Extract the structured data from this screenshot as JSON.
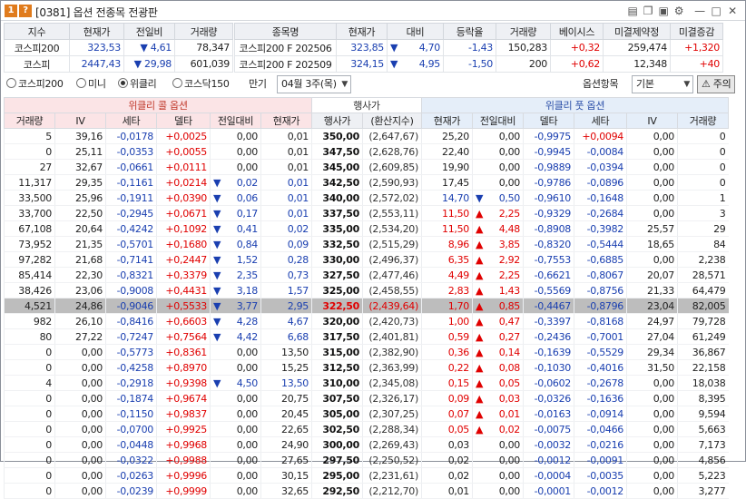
{
  "window": {
    "code": "[0381]",
    "title": "옵션 전종목 전광판",
    "help": "?",
    "num": "1"
  },
  "summary_left": {
    "headers": [
      "지수",
      "현재가",
      "전일비",
      "거래량"
    ],
    "rows": [
      {
        "name": "코스피200",
        "price": "323,53",
        "dir": "dn",
        "change": "4,61",
        "volume": "78,347"
      },
      {
        "name": "코스피",
        "price": "2447,43",
        "dir": "dn",
        "change": "29,98",
        "volume": "601,039"
      }
    ]
  },
  "summary_right": {
    "headers": [
      "종목명",
      "현재가",
      "대비",
      "등락율",
      "거래량",
      "베이시스",
      "미결제약정",
      "미결증감"
    ],
    "rows": [
      {
        "name": "코스피200 F 202506",
        "price": "323,85",
        "dir": "dn",
        "change": "4,70",
        "rate": "-1,43",
        "volume": "150,283",
        "basis": "+0,32",
        "oi": "259,474",
        "oichg": "+1,320"
      },
      {
        "name": "코스피200 F 202509",
        "price": "324,15",
        "dir": "dn",
        "change": "4,95",
        "rate": "-1,50",
        "volume": "200",
        "basis": "+0,62",
        "oi": "12,348",
        "oichg": "+40"
      }
    ]
  },
  "controls": {
    "radios": [
      "코스피200",
      "미니",
      "위클리",
      "코스닥150"
    ],
    "selected": 2,
    "expiry_label": "만기",
    "expiry_value": "04월 3주(목)",
    "option_item_label": "옵션항목",
    "option_item_value": "기본",
    "lookup_label": "주의"
  },
  "grid": {
    "group_call": "위클리 콜 옵션",
    "group_strike": "행사가",
    "group_put": "위클리 풋 옵션",
    "call_headers": [
      "거래량",
      "IV",
      "세타",
      "델타",
      "전일대비",
      "현재가"
    ],
    "strike_headers": [
      "행사가",
      "(환산지수)"
    ],
    "put_headers": [
      "현재가",
      "전일대비",
      "델타",
      "세타",
      "IV",
      "거래량"
    ],
    "rows": [
      {
        "cv": "5",
        "civ": "39,16",
        "cth": "-0,0178",
        "cde": "+0,0025",
        "cd": "",
        "cch": "0,00",
        "cp": "0,01",
        "k": "350,00",
        "x": "(2,647,67)",
        "pp": "25,20",
        "pd": "",
        "pch": "0,00",
        "pde": "-0,9975",
        "pth": "+0,0094",
        "piv": "0,00",
        "pv": "0"
      },
      {
        "cv": "0",
        "civ": "25,11",
        "cth": "-0,0353",
        "cde": "+0,0055",
        "cd": "",
        "cch": "0,00",
        "cp": "0,01",
        "k": "347,50",
        "x": "(2,628,76)",
        "pp": "22,40",
        "pd": "",
        "pch": "0,00",
        "pde": "-0,9945",
        "pth": "-0,0084",
        "piv": "0,00",
        "pv": "0"
      },
      {
        "cv": "27",
        "civ": "32,67",
        "cth": "-0,0661",
        "cde": "+0,0111",
        "cd": "",
        "cch": "0,00",
        "cp": "0,01",
        "k": "345,00",
        "x": "(2,609,85)",
        "pp": "19,90",
        "pd": "",
        "pch": "0,00",
        "pde": "-0,9889",
        "pth": "-0,0394",
        "piv": "0,00",
        "pv": "0"
      },
      {
        "cv": "11,317",
        "civ": "29,35",
        "cth": "-0,1161",
        "cde": "+0,0214",
        "cd": "dn",
        "cch": "0,02",
        "cp": "0,01",
        "k": "342,50",
        "x": "(2,590,93)",
        "pp": "17,45",
        "pd": "",
        "pch": "0,00",
        "pde": "-0,9786",
        "pth": "-0,0896",
        "piv": "0,00",
        "pv": "0"
      },
      {
        "cv": "33,500",
        "civ": "25,96",
        "cth": "-0,1911",
        "cde": "+0,0390",
        "cd": "dn",
        "cch": "0,06",
        "cp": "0,01",
        "k": "340,00",
        "x": "(2,572,02)",
        "pp": "14,70",
        "pd": "dn",
        "pch": "0,50",
        "pde": "-0,9610",
        "pth": "-0,1648",
        "piv": "0,00",
        "pv": "1"
      },
      {
        "cv": "33,700",
        "civ": "22,50",
        "cth": "-0,2945",
        "cde": "+0,0671",
        "cd": "dn",
        "cch": "0,17",
        "cp": "0,01",
        "k": "337,50",
        "x": "(2,553,11)",
        "pp": "11,50",
        "pd": "up",
        "pch": "2,25",
        "pde": "-0,9329",
        "pth": "-0,2684",
        "piv": "0,00",
        "pv": "3"
      },
      {
        "cv": "67,108",
        "civ": "20,64",
        "cth": "-0,4242",
        "cde": "+0,1092",
        "cd": "dn",
        "cch": "0,41",
        "cp": "0,02",
        "k": "335,00",
        "x": "(2,534,20)",
        "pp": "11,50",
        "pd": "up",
        "pch": "4,48",
        "pde": "-0,8908",
        "pth": "-0,3982",
        "piv": "25,57",
        "pv": "29"
      },
      {
        "cv": "73,952",
        "civ": "21,35",
        "cth": "-0,5701",
        "cde": "+0,1680",
        "cd": "dn",
        "cch": "0,84",
        "cp": "0,09",
        "k": "332,50",
        "x": "(2,515,29)",
        "pp": "8,96",
        "pd": "up",
        "pch": "3,85",
        "pde": "-0,8320",
        "pth": "-0,5444",
        "piv": "18,65",
        "pv": "84"
      },
      {
        "cv": "97,282",
        "civ": "21,68",
        "cth": "-0,7141",
        "cde": "+0,2447",
        "cd": "dn",
        "cch": "1,52",
        "cp": "0,28",
        "k": "330,00",
        "x": "(2,496,37)",
        "pp": "6,35",
        "pd": "up",
        "pch": "2,92",
        "pde": "-0,7553",
        "pth": "-0,6885",
        "piv": "0,00",
        "pv": "2,238"
      },
      {
        "cv": "85,414",
        "civ": "22,30",
        "cth": "-0,8321",
        "cde": "+0,3379",
        "cd": "dn",
        "cch": "2,35",
        "cp": "0,73",
        "k": "327,50",
        "x": "(2,477,46)",
        "pp": "4,49",
        "pd": "up",
        "pch": "2,25",
        "pde": "-0,6621",
        "pth": "-0,8067",
        "piv": "20,07",
        "pv": "28,571"
      },
      {
        "cv": "38,426",
        "civ": "23,06",
        "cth": "-0,9008",
        "cde": "+0,4431",
        "cd": "dn",
        "cch": "3,18",
        "cp": "1,57",
        "k": "325,00",
        "x": "(2,458,55)",
        "pp": "2,83",
        "pd": "up",
        "pch": "1,43",
        "pde": "-0,5569",
        "pth": "-0,8756",
        "piv": "21,33",
        "pv": "64,479"
      },
      {
        "cv": "4,521",
        "civ": "24,86",
        "cth": "-0,9046",
        "cde": "+0,5533",
        "cd": "dn",
        "cch": "3,77",
        "cp": "2,95",
        "k": "322,50",
        "x": "(2,439,64)",
        "pp": "1,70",
        "pd": "up",
        "pch": "0,85",
        "pde": "-0,4467",
        "pth": "-0,8796",
        "piv": "23,04",
        "pv": "82,005",
        "atm": true
      },
      {
        "cv": "982",
        "civ": "26,10",
        "cth": "-0,8416",
        "cde": "+0,6603",
        "cd": "dn",
        "cch": "4,28",
        "cp": "4,67",
        "k": "320,00",
        "x": "(2,420,73)",
        "pp": "1,00",
        "pd": "up",
        "pch": "0,47",
        "pde": "-0,3397",
        "pth": "-0,8168",
        "piv": "24,97",
        "pv": "79,728"
      },
      {
        "cv": "80",
        "civ": "27,22",
        "cth": "-0,7247",
        "cde": "+0,7564",
        "cd": "dn",
        "cch": "4,42",
        "cp": "6,68",
        "k": "317,50",
        "x": "(2,401,81)",
        "pp": "0,59",
        "pd": "up",
        "pch": "0,27",
        "pde": "-0,2436",
        "pth": "-0,7001",
        "piv": "27,04",
        "pv": "61,249"
      },
      {
        "cv": "0",
        "civ": "0,00",
        "cth": "-0,5773",
        "cde": "+0,8361",
        "cd": "",
        "cch": "0,00",
        "cp": "13,50",
        "k": "315,00",
        "x": "(2,382,90)",
        "pp": "0,36",
        "pd": "up",
        "pch": "0,14",
        "pde": "-0,1639",
        "pth": "-0,5529",
        "piv": "29,34",
        "pv": "36,867"
      },
      {
        "cv": "0",
        "civ": "0,00",
        "cth": "-0,4258",
        "cde": "+0,8970",
        "cd": "",
        "cch": "0,00",
        "cp": "15,25",
        "k": "312,50",
        "x": "(2,363,99)",
        "pp": "0,22",
        "pd": "up",
        "pch": "0,08",
        "pde": "-0,1030",
        "pth": "-0,4016",
        "piv": "31,50",
        "pv": "22,158"
      },
      {
        "cv": "4",
        "civ": "0,00",
        "cth": "-0,2918",
        "cde": "+0,9398",
        "cd": "dn",
        "cch": "4,50",
        "cp": "13,50",
        "k": "310,00",
        "x": "(2,345,08)",
        "pp": "0,15",
        "pd": "up",
        "pch": "0,05",
        "pde": "-0,0602",
        "pth": "-0,2678",
        "piv": "0,00",
        "pv": "18,038"
      },
      {
        "cv": "0",
        "civ": "0,00",
        "cth": "-0,1874",
        "cde": "+0,9674",
        "cd": "",
        "cch": "0,00",
        "cp": "20,75",
        "k": "307,50",
        "x": "(2,326,17)",
        "pp": "0,09",
        "pd": "up",
        "pch": "0,03",
        "pde": "-0,0326",
        "pth": "-0,1636",
        "piv": "0,00",
        "pv": "8,395"
      },
      {
        "cv": "0",
        "civ": "0,00",
        "cth": "-0,1150",
        "cde": "+0,9837",
        "cd": "",
        "cch": "0,00",
        "cp": "20,45",
        "k": "305,00",
        "x": "(2,307,25)",
        "pp": "0,07",
        "pd": "up",
        "pch": "0,01",
        "pde": "-0,0163",
        "pth": "-0,0914",
        "piv": "0,00",
        "pv": "9,594"
      },
      {
        "cv": "0",
        "civ": "0,00",
        "cth": "-0,0700",
        "cde": "+0,9925",
        "cd": "",
        "cch": "0,00",
        "cp": "22,65",
        "k": "302,50",
        "x": "(2,288,34)",
        "pp": "0,05",
        "pd": "up",
        "pch": "0,02",
        "pde": "-0,0075",
        "pth": "-0,0466",
        "piv": "0,00",
        "pv": "5,663"
      },
      {
        "cv": "0",
        "civ": "0,00",
        "cth": "-0,0448",
        "cde": "+0,9968",
        "cd": "",
        "cch": "0,00",
        "cp": "24,90",
        "k": "300,00",
        "x": "(2,269,43)",
        "pp": "0,03",
        "pd": "",
        "pch": "0,00",
        "pde": "-0,0032",
        "pth": "-0,0216",
        "piv": "0,00",
        "pv": "7,173"
      },
      {
        "cv": "0",
        "civ": "0,00",
        "cth": "-0,0322",
        "cde": "+0,9988",
        "cd": "",
        "cch": "0,00",
        "cp": "27,65",
        "k": "297,50",
        "x": "(2,250,52)",
        "pp": "0,02",
        "pd": "",
        "pch": "0,00",
        "pde": "-0,0012",
        "pth": "-0,0091",
        "piv": "0,00",
        "pv": "4,856"
      },
      {
        "cv": "0",
        "civ": "0,00",
        "cth": "-0,0263",
        "cde": "+0,9996",
        "cd": "",
        "cch": "0,00",
        "cp": "30,15",
        "k": "295,00",
        "x": "(2,231,61)",
        "pp": "0,02",
        "pd": "",
        "pch": "0,00",
        "pde": "-0,0004",
        "pth": "-0,0035",
        "piv": "0,00",
        "pv": "5,223"
      },
      {
        "cv": "0",
        "civ": "0,00",
        "cth": "-0,0239",
        "cde": "+0,9999",
        "cd": "",
        "cch": "0,00",
        "cp": "32,65",
        "k": "292,50",
        "x": "(2,212,70)",
        "pp": "0,01",
        "pd": "",
        "pch": "0,00",
        "pde": "-0,0001",
        "pth": "-0,0012",
        "piv": "0,00",
        "pv": "3,277"
      }
    ]
  },
  "colors": {
    "up": "#e00000",
    "down": "#1a3fb0",
    "call_bg": "#fbe4e6",
    "put_bg": "#e5eef9",
    "atm_row": "#bdbdbd"
  },
  "icons": {
    "dn": "triangle-down",
    "up": "triangle-up"
  }
}
